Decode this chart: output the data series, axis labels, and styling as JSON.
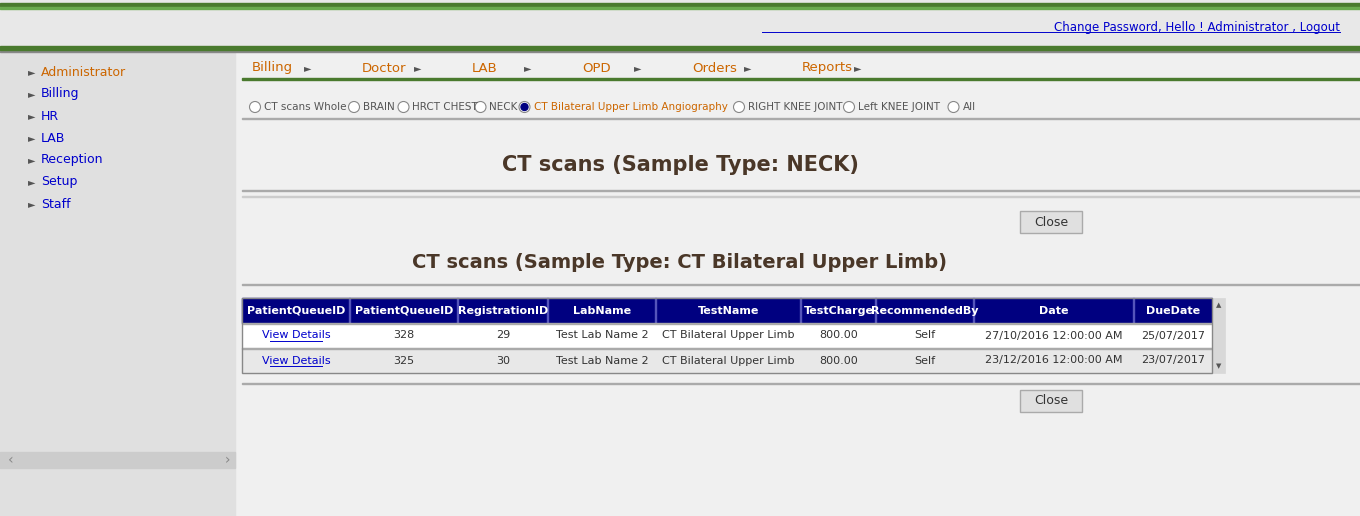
{
  "bg_color": "#f0f0f0",
  "top_bar_color": "#4a7a2e",
  "header_link_text": "Change Password, Hello ! Administrator , Logout",
  "header_link_color": "#0000cc",
  "nav_items": [
    "Billing",
    "Doctor",
    "LAB",
    "OPD",
    "Orders",
    "Reports"
  ],
  "left_menu": [
    "Administrator",
    "Billing",
    "HR",
    "LAB",
    "Reception",
    "Setup",
    "Staff"
  ],
  "left_menu_colors": [
    "#cc6600",
    "#0000cc",
    "#0000cc",
    "#0000cc",
    "#0000cc",
    "#0000cc",
    "#0000cc"
  ],
  "radio_options": [
    "CT scans Whole",
    "BRAIN",
    "HRCT CHEST",
    "NECK",
    "CT Bilateral Upper Limb Angiography",
    "RIGHT KNEE JOINT",
    "Left KNEE JOINT",
    "All"
  ],
  "radio_selected": 4,
  "title1": "CT scans (Sample Type: NECK)",
  "title2": "CT scans (Sample Type: CT Bilateral Upper Limb)",
  "table_header_bg": "#000080",
  "table_header_color": "#ffffff",
  "table_headers": [
    "PatientQueueID",
    "PatientQueueID",
    "RegistrationID",
    "LabName",
    "TestName",
    "TestCharge",
    "RecommendedBy",
    "Date",
    "DueDate"
  ],
  "table_row1": [
    "View Details",
    "328",
    "29",
    "Test Lab Name 2",
    "CT Bilateral Upper Limb",
    "800.00",
    "Self",
    "27/10/2016 12:00:00 AM",
    "25/07/2017"
  ],
  "table_row2": [
    "View Details",
    "325",
    "30",
    "Test Lab Name 2",
    "CT Bilateral Upper Limb",
    "800.00",
    "Self",
    "23/12/2016 12:00:00 AM",
    "23/07/2017"
  ],
  "row1_bg": "#ffffff",
  "row2_bg": "#e8e8e8",
  "link_color": "#0000cc",
  "close_btn_color": "#f0f0f0",
  "line_color": "#cccccc",
  "green_line_color": "#4a7a2e",
  "title_color": "#4a3728",
  "nav_color": "#cc6600"
}
